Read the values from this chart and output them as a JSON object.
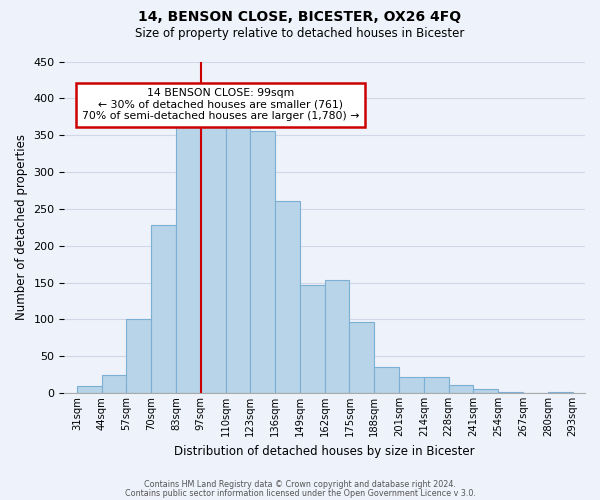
{
  "title": "14, BENSON CLOSE, BICESTER, OX26 4FQ",
  "subtitle": "Size of property relative to detached houses in Bicester",
  "xlabel": "Distribution of detached houses by size in Bicester",
  "ylabel": "Number of detached properties",
  "footer_line1": "Contains HM Land Registry data © Crown copyright and database right 2024.",
  "footer_line2": "Contains public sector information licensed under the Open Government Licence v 3.0.",
  "tick_labels": [
    "31sqm",
    "44sqm",
    "57sqm",
    "70sqm",
    "83sqm",
    "97sqm",
    "110sqm",
    "123sqm",
    "136sqm",
    "149sqm",
    "162sqm",
    "175sqm",
    "188sqm",
    "201sqm",
    "214sqm",
    "228sqm",
    "241sqm",
    "254sqm",
    "267sqm",
    "280sqm",
    "293sqm"
  ],
  "bar_values": [
    10,
    25,
    100,
    228,
    365,
    373,
    375,
    355,
    260,
    147,
    153,
    97,
    35,
    22,
    22,
    11,
    5,
    1,
    0,
    1
  ],
  "bar_color": "#b8d4e8",
  "bar_edge_color": "#7bafd4",
  "annotation_title": "14 BENSON CLOSE: 99sqm",
  "annotation_line1": "← 30% of detached houses are smaller (761)",
  "annotation_line2": "70% of semi-detached houses are larger (1,780) →",
  "annotation_box_facecolor": "#ffffff",
  "annotation_box_edgecolor": "#cc0000",
  "vline_color": "#cc0000",
  "vline_position": 5,
  "ylim": [
    0,
    450
  ],
  "yticks": [
    0,
    50,
    100,
    150,
    200,
    250,
    300,
    350,
    400,
    450
  ],
  "grid_color": "#d0d8e8",
  "background_color": "#eef2fa"
}
